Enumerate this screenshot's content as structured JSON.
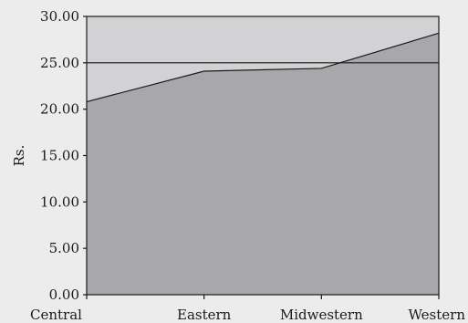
{
  "chart_data": {
    "type": "area",
    "categories": [
      "Central",
      "Eastern",
      "Midwestern",
      "Western"
    ],
    "series": [
      {
        "values": [
          20.8,
          24.1,
          24.4,
          28.2
        ]
      }
    ],
    "reference_line": 25.0,
    "xlabel": "",
    "ylabel": "Rs.",
    "ylim": [
      0,
      30
    ],
    "yticks": [
      "0.00",
      "5.00",
      "10.00",
      "15.00",
      "20.00",
      "25.00",
      "30.00"
    ],
    "grid": false,
    "legend": "none",
    "colors": {
      "background": "#ececed",
      "plot_background": "#d2d2d4",
      "area_fill": "#a8a8aa",
      "line": "#1a1a1a"
    }
  }
}
